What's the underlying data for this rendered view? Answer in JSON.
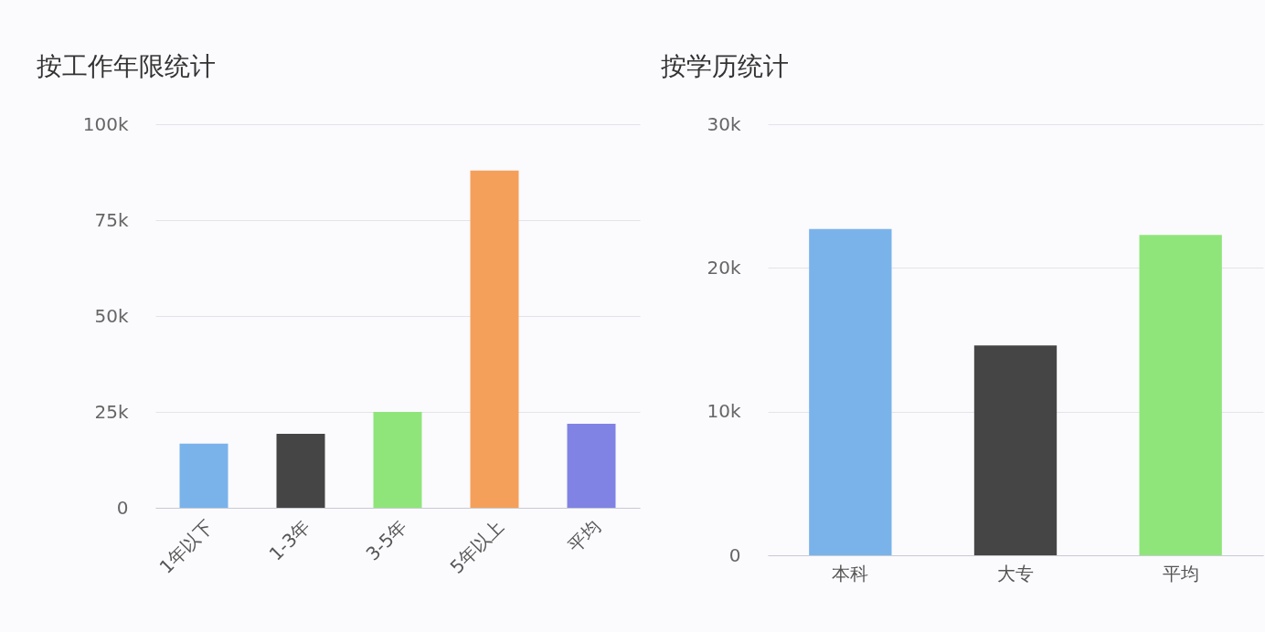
{
  "chart_data": [
    {
      "type": "bar",
      "title": "按工作年限统计",
      "categories": [
        "1年以下",
        "1-3年",
        "3-5年",
        "5年以上",
        "平均"
      ],
      "values": [
        16700,
        19300,
        25000,
        87900,
        21900
      ],
      "colors": [
        "#7ab3ea",
        "#454545",
        "#90e57a",
        "#f5a05a",
        "#8083e3"
      ],
      "ylim": [
        0,
        100000
      ],
      "yticks": [
        {
          "value": 0,
          "label": "0"
        },
        {
          "value": 25000,
          "label": "25k"
        },
        {
          "value": 50000,
          "label": "50k"
        },
        {
          "value": 75000,
          "label": "75k"
        },
        {
          "value": 100000,
          "label": "100k"
        }
      ],
      "grid": "y"
    },
    {
      "type": "bar",
      "title": "按学历统计",
      "categories": [
        "本科",
        "大专",
        "平均"
      ],
      "values": [
        22700,
        14600,
        22300
      ],
      "colors": [
        "#7ab3ea",
        "#454545",
        "#90e57a"
      ],
      "ylim": [
        0,
        30000
      ],
      "yticks": [
        {
          "value": 0,
          "label": "0"
        },
        {
          "value": 10000,
          "label": "10k"
        },
        {
          "value": 20000,
          "label": "20k"
        },
        {
          "value": 30000,
          "label": "30k"
        }
      ],
      "grid": "y"
    }
  ]
}
